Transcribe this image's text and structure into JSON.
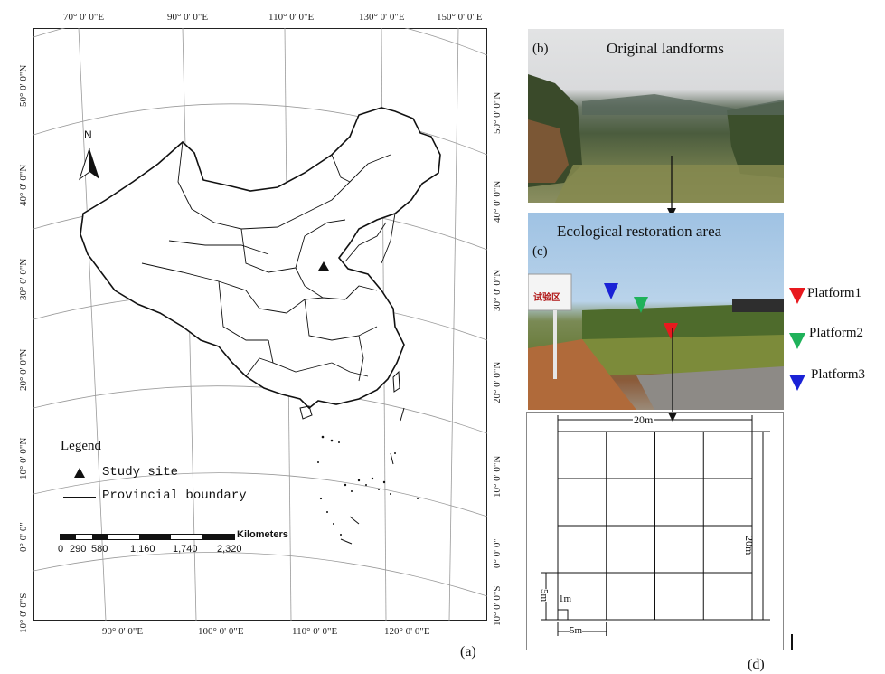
{
  "map": {
    "panel_label": "(a)",
    "top_coords": [
      "70° 0' 0\"E",
      "90° 0' 0\"E",
      "110° 0' 0\"E",
      "130° 0' 0\"E",
      "150° 0' 0\"E"
    ],
    "bottom_coords": [
      "90° 0' 0\"E",
      "100° 0' 0\"E",
      "110° 0' 0\"E",
      "120° 0' 0\"E"
    ],
    "left_coords": [
      "50° 0' 0\"N",
      "40° 0' 0\"N",
      "30° 0' 0\"N",
      "20° 0' 0\"N",
      "10° 0' 0\"N",
      "0° 0' 0\"",
      "10° 0' 0\"S"
    ],
    "right_coords": [
      "50° 0' 0\"N",
      "40° 0' 0\"N",
      "30° 0' 0\"N",
      "20° 0' 0\"N",
      "10° 0' 0\"N",
      "0° 0' 0\"",
      "10° 0' 0\"S"
    ],
    "north_label": "N",
    "legend_title": "Legend",
    "legend_study_site": "Study site",
    "legend_boundary": "Provincial boundary",
    "scale_unit": "Kilometers",
    "scale_ticks": [
      "0",
      "290",
      "580",
      "1,160",
      "1,740",
      "2,320"
    ]
  },
  "photo_b": {
    "panel_label": "(b)",
    "title": "Original landforms"
  },
  "photo_c": {
    "panel_label": "(c)",
    "title": "Ecological restoration area",
    "sign_text": "试验区"
  },
  "platforms": [
    {
      "label": "Platform1",
      "color": "#e8191e"
    },
    {
      "label": "Platform2",
      "color": "#1fb25a"
    },
    {
      "label": "Platform3",
      "color": "#1a22d6"
    }
  ],
  "grid": {
    "panel_label": "(d)",
    "width_label": "20m",
    "height_label": "20m",
    "sub_height_label": "5m",
    "sub_width_label": "5m",
    "small_label": "1m"
  }
}
